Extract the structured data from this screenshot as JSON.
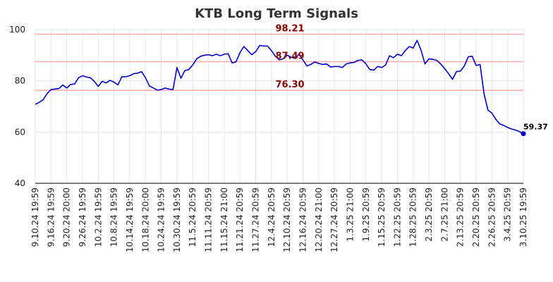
{
  "chart_data": {
    "type": "line",
    "title": "KTB Long Term Signals",
    "xlabel": "",
    "ylabel": "",
    "ylim": [
      40,
      100
    ],
    "yticks": [
      40,
      60,
      80,
      100
    ],
    "grid": true,
    "colors": {
      "line": "#0000cc",
      "hline": "#ffaaaa",
      "hlabel": "#8b0000",
      "grid": "#e6e6e6"
    },
    "xtick_labels": [
      "9.10.24 19:59",
      "9.16.24 19:59",
      "9.20.24 20:00",
      "9.26.24 19:59",
      "10.2.24 19:59",
      "10.8.24 19:59",
      "10.14.24 19:59",
      "10.18.24 20:00",
      "10.24.24 19:59",
      "10.30.24 19:59",
      "11.5.24 20:59",
      "11.11.24 20:59",
      "11.15.24 21:00",
      "11.21.24 20:59",
      "11.27.24 20:59",
      "12.4.24 20:59",
      "12.10.24 20:59",
      "12.16.24 20:59",
      "12.20.24 21:00",
      "12.27.24 20:59",
      "1.3.25 21:00",
      "1.9.25 20:59",
      "1.15.25 20:59",
      "1.22.25 20:59",
      "1.28.25 20:59",
      "2.3.25 20:59",
      "2.7.25 21:00",
      "2.13.25 20:59",
      "2.20.25 20:59",
      "2.26.25 20:59",
      "3.4.25 20:59",
      "3.10.25 19:59"
    ],
    "horizontal_lines": [
      {
        "value": 98.21,
        "label": "98.21"
      },
      {
        "value": 87.49,
        "label": "87.49"
      },
      {
        "value": 76.3,
        "label": "76.30"
      }
    ],
    "last_value_label": "59.37",
    "series": [
      {
        "values": [
          70.8,
          71.6,
          72.6,
          75.0,
          76.6,
          76.8,
          77.0,
          78.4,
          77.2,
          78.6,
          78.8,
          81.2,
          82.0,
          81.5,
          81.2,
          79.8,
          77.8,
          79.8,
          79.2,
          80.2,
          79.5,
          78.4,
          81.6,
          81.6,
          82.0,
          82.8,
          83.0,
          83.6,
          81.2,
          78.0,
          77.2,
          76.4,
          76.6,
          77.2,
          76.8,
          76.6,
          85.2,
          81.0,
          84.0,
          84.4,
          86.2,
          88.6,
          89.6,
          90.0,
          90.2,
          89.8,
          90.4,
          89.8,
          90.4,
          90.6,
          87.0,
          87.4,
          91.0,
          93.4,
          91.8,
          90.2,
          91.4,
          93.8,
          93.6,
          93.6,
          91.8,
          89.6,
          88.2,
          88.6,
          90.0,
          89.2,
          88.8,
          90.4,
          88.2,
          85.8,
          86.4,
          87.4,
          86.8,
          86.4,
          86.6,
          85.4,
          85.6,
          85.6,
          85.2,
          86.6,
          87.0,
          87.2,
          88.0,
          88.2,
          86.6,
          84.4,
          84.2,
          85.6,
          85.2,
          86.2,
          89.8,
          89.0,
          90.4,
          89.8,
          91.8,
          93.4,
          92.8,
          95.8,
          92.0,
          86.6,
          88.6,
          88.4,
          88.0,
          86.6,
          84.8,
          82.8,
          80.6,
          83.6,
          83.8,
          85.8,
          89.4,
          89.6,
          86.0,
          86.4,
          75.0,
          68.6,
          67.4,
          65.0,
          63.2,
          62.6,
          61.8,
          61.2,
          60.8,
          60.2,
          59.37
        ]
      }
    ]
  }
}
